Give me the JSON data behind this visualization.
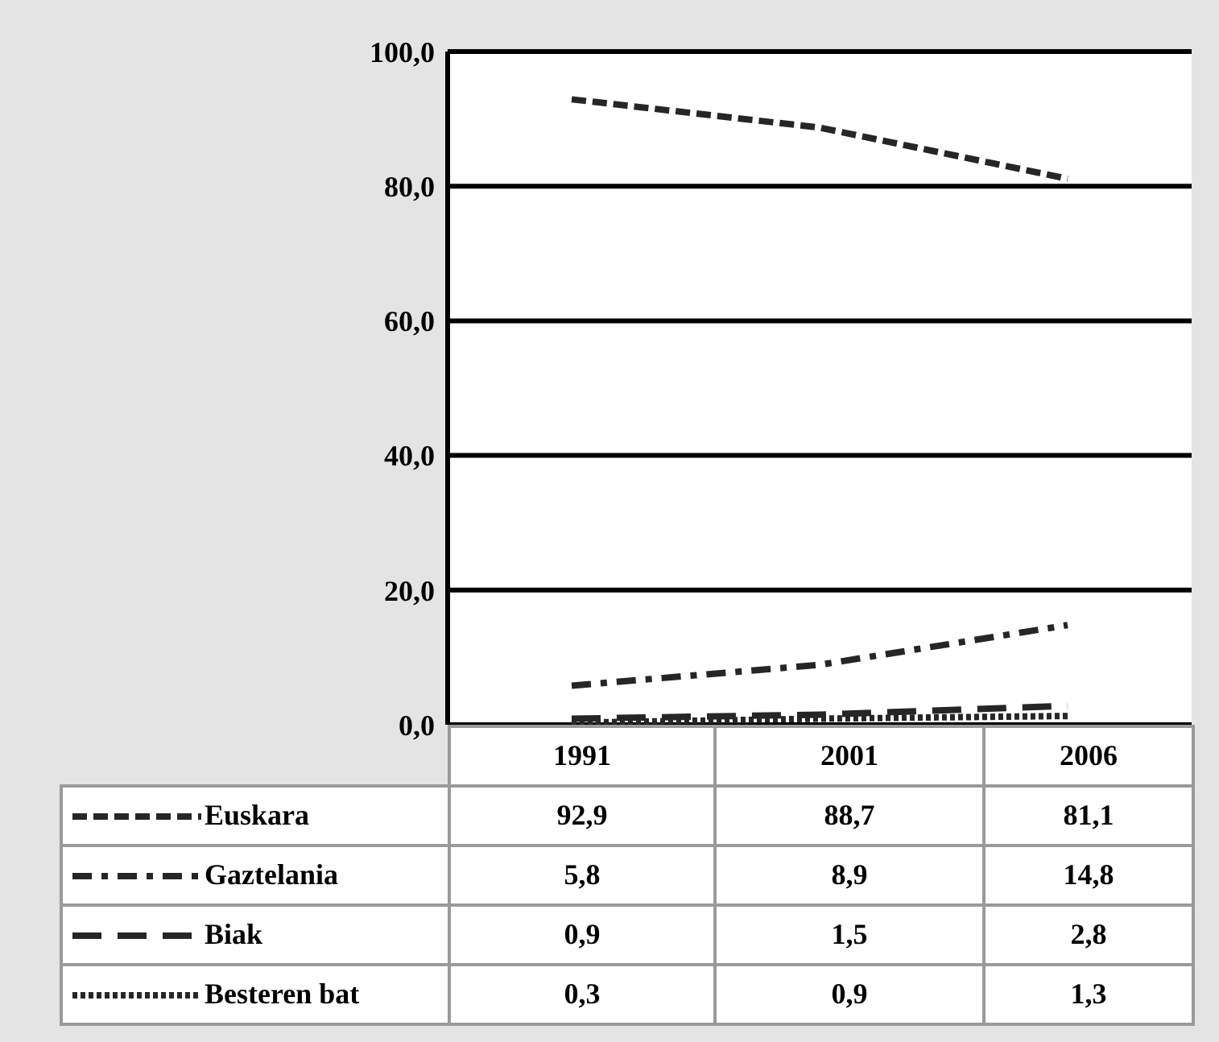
{
  "chart_data": {
    "type": "line",
    "categories": [
      "1991",
      "2001",
      "2006"
    ],
    "series": [
      {
        "name": "Euskara",
        "color": "#262626",
        "line_style": "dashed",
        "values": [
          92.9,
          88.7,
          81.1
        ],
        "value_labels": [
          "92,9",
          "88,7",
          "81,1"
        ]
      },
      {
        "name": "Gaztelania",
        "color": "#262626",
        "line_style": "dashdot",
        "values": [
          5.8,
          8.9,
          14.8
        ],
        "value_labels": [
          "5,8",
          "8,9",
          "14,8"
        ]
      },
      {
        "name": "Biak",
        "color": "#262626",
        "line_style": "longdash",
        "values": [
          0.9,
          1.5,
          2.8
        ],
        "value_labels": [
          "0,9",
          "1,5",
          "2,8"
        ]
      },
      {
        "name": "Besteren bat",
        "color": "#262626",
        "line_style": "dotted",
        "values": [
          0.3,
          0.9,
          1.3
        ],
        "value_labels": [
          "0,3",
          "0,9",
          "1,3"
        ]
      }
    ],
    "ylim": [
      0,
      100
    ],
    "yticks": [
      {
        "value": 0,
        "label": "0,0"
      },
      {
        "value": 20,
        "label": "20,0"
      },
      {
        "value": 40,
        "label": "40,0"
      },
      {
        "value": 60,
        "label": "60,0"
      },
      {
        "value": 80,
        "label": "80,0"
      },
      {
        "value": 100,
        "label": "100,0"
      }
    ],
    "grid": "y",
    "legend": "bottom",
    "marker": "none"
  }
}
